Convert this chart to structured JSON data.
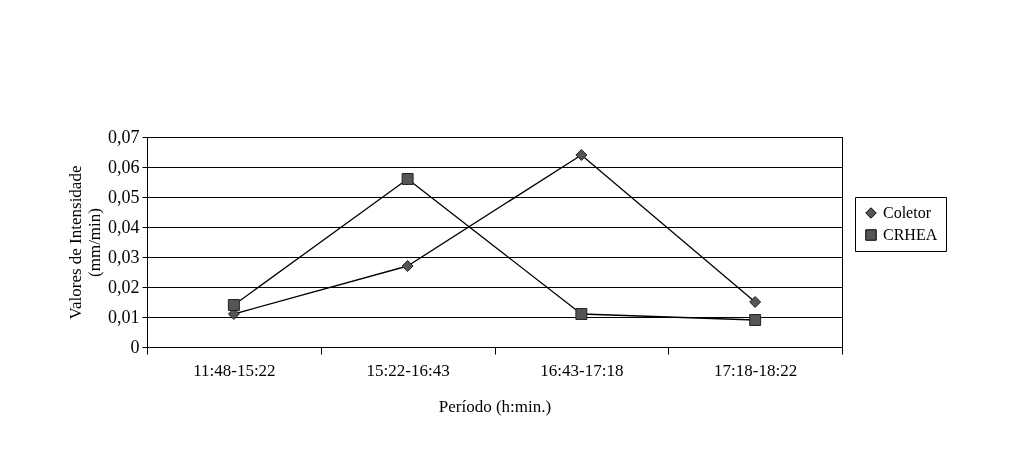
{
  "chart_data": {
    "type": "line",
    "xlabel": "Período (h:min.)",
    "ylabel": "Valores de Intensidade\n(mm/min)",
    "categories": [
      "11:48-15:22",
      "15:22-16:43",
      "16:43-17:18",
      "17:18-18:22"
    ],
    "series": [
      {
        "name": "Coletor",
        "color": "#555555",
        "marker": "diamond",
        "values": [
          0.011,
          0.027,
          0.064,
          0.015
        ]
      },
      {
        "name": "CRHEA",
        "color": "#555555",
        "marker": "square",
        "values": [
          0.014,
          0.056,
          0.011,
          0.009
        ]
      }
    ],
    "ylim": [
      0,
      0.07
    ],
    "yticks": [
      {
        "value": 0,
        "label": "0"
      },
      {
        "value": 0.01,
        "label": "0,01"
      },
      {
        "value": 0.02,
        "label": "0,02"
      },
      {
        "value": 0.03,
        "label": "0,03"
      },
      {
        "value": 0.04,
        "label": "0,04"
      },
      {
        "value": 0.05,
        "label": "0,05"
      },
      {
        "value": 0.06,
        "label": "0,06"
      },
      {
        "value": 0.07,
        "label": "0,07"
      }
    ],
    "grid": "y",
    "legend": "right",
    "line_style": "solid"
  }
}
